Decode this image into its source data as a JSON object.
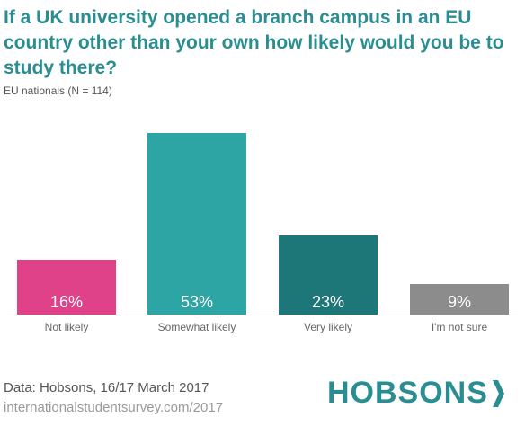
{
  "header": {
    "title": "If a UK university opened a branch campus in an EU country other than your own how likely would you be to study there?",
    "subtitle": "EU nationals (N = 114)"
  },
  "chart_data": {
    "type": "bar",
    "categories": [
      "Not likely",
      "Somewhat likely",
      "Very likely",
      "I'm not sure"
    ],
    "values": [
      16,
      53,
      23,
      9
    ],
    "value_labels": [
      "16%",
      "53%",
      "23%",
      "9%"
    ],
    "colors": [
      "#e0428a",
      "#2ea5a5",
      "#1d7677",
      "#8c8c8c"
    ],
    "title": "If a UK university opened a branch campus in an EU country other than your own how likely would you be to study there?",
    "subtitle": "EU nationals (N = 114)",
    "ylim": [
      0,
      53
    ],
    "grid": false,
    "legend": "none"
  },
  "footer": {
    "source": "Data: Hobsons, 16/17 March 2017",
    "website": "internationalstudentsurvey.com/2017"
  },
  "logo": {
    "text": "HOBSONS",
    "icon": "chevron-right-icon",
    "color": "#2a8d92"
  }
}
